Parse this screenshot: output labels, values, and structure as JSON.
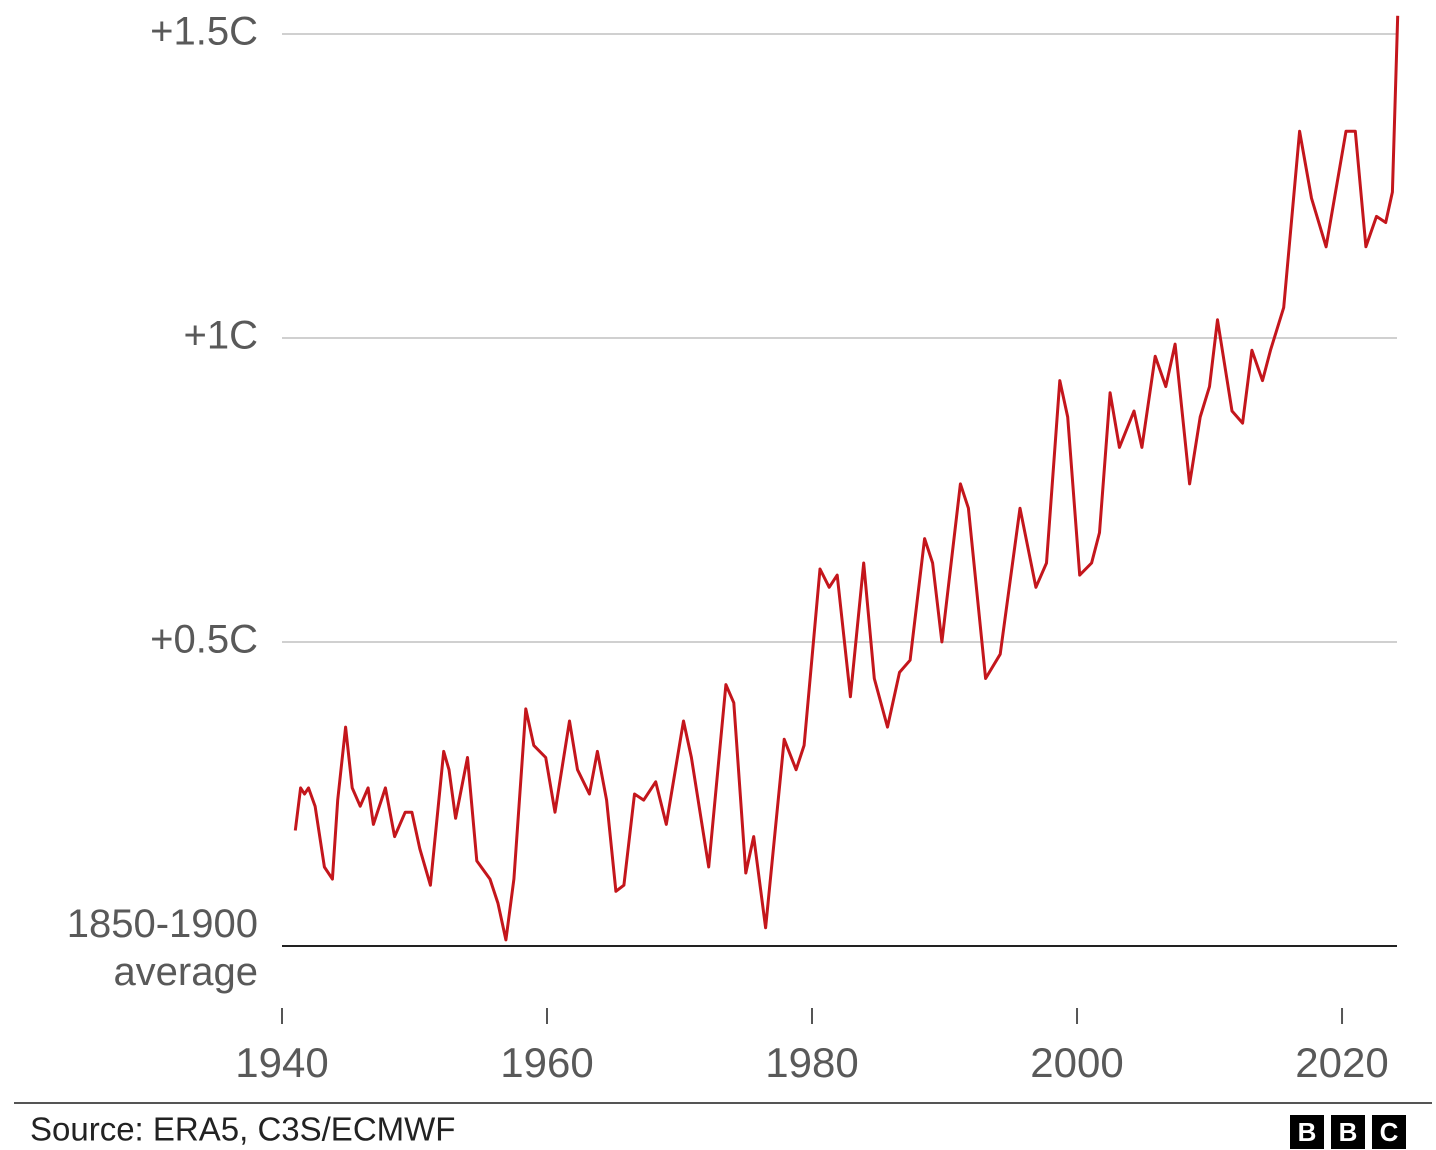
{
  "chart_data": {
    "type": "line",
    "color": "#c4161c",
    "xlim": [
      1940,
      2024.3
    ],
    "xticks": [
      1940,
      1960,
      1980,
      2000,
      2020
    ],
    "ylim": [
      0,
      1.55
    ],
    "yticks": [
      {
        "value": 0,
        "label": "1850-1900 average"
      },
      {
        "value": 0.5,
        "label": "+0.5C"
      },
      {
        "value": 1,
        "label": "+1C"
      },
      {
        "value": 1.5,
        "label": "+1.5C"
      }
    ],
    "grid": true,
    "x": [
      1941.0,
      1941.4,
      1941.7,
      1942.0,
      1942.5,
      1943.2,
      1943.8,
      1944.2,
      1944.8,
      1945.3,
      1945.9,
      1946.5,
      1946.9,
      1947.8,
      1948.5,
      1949.3,
      1949.8,
      1950.4,
      1951.2,
      1952.2,
      1952.6,
      1953.1,
      1954.0,
      1954.7,
      1955.7,
      1956.3,
      1956.9,
      1957.5,
      1958.4,
      1959.0,
      1959.9,
      1960.6,
      1961.7,
      1962.3,
      1963.2,
      1963.8,
      1964.5,
      1965.2,
      1965.8,
      1966.6,
      1967.3,
      1968.2,
      1969.0,
      1970.3,
      1970.9,
      1972.2,
      1973.5,
      1974.1,
      1975.0,
      1975.6,
      1976.5,
      1977.9,
      1978.8,
      1979.4,
      1980.6,
      1981.3,
      1981.9,
      1982.9,
      1983.9,
      1984.7,
      1985.7,
      1986.6,
      1987.4,
      1988.5,
      1989.1,
      1989.8,
      1991.2,
      1991.8,
      1993.1,
      1994.2,
      1995.7,
      1996.9,
      1997.7,
      1998.7,
      1999.3,
      2000.2,
      2001.1,
      2001.7,
      2002.5,
      2003.2,
      2004.3,
      2004.9,
      2005.9,
      2006.7,
      2007.4,
      2008.5,
      2009.3,
      2010.0,
      2010.6,
      2011.7,
      2012.5,
      2013.2,
      2014.0,
      2014.6,
      2015.6,
      2016.8,
      2017.7,
      2018.8,
      2020.3,
      2021.0,
      2021.8,
      2022.6,
      2023.3,
      2023.8,
      2024.2
    ],
    "values": [
      0.19,
      0.26,
      0.25,
      0.26,
      0.23,
      0.13,
      0.11,
      0.24,
      0.36,
      0.26,
      0.23,
      0.26,
      0.2,
      0.26,
      0.18,
      0.22,
      0.22,
      0.16,
      0.1,
      0.32,
      0.29,
      0.21,
      0.31,
      0.14,
      0.11,
      0.07,
      0.01,
      0.11,
      0.39,
      0.33,
      0.31,
      0.22,
      0.37,
      0.29,
      0.25,
      0.32,
      0.24,
      0.09,
      0.1,
      0.25,
      0.24,
      0.27,
      0.2,
      0.37,
      0.31,
      0.13,
      0.43,
      0.4,
      0.12,
      0.18,
      0.03,
      0.34,
      0.29,
      0.33,
      0.62,
      0.59,
      0.61,
      0.41,
      0.63,
      0.44,
      0.36,
      0.45,
      0.47,
      0.67,
      0.63,
      0.5,
      0.76,
      0.72,
      0.44,
      0.48,
      0.72,
      0.59,
      0.63,
      0.93,
      0.87,
      0.61,
      0.63,
      0.68,
      0.91,
      0.82,
      0.88,
      0.82,
      0.97,
      0.92,
      0.99,
      0.76,
      0.87,
      0.92,
      1.03,
      0.88,
      0.86,
      0.98,
      0.93,
      0.98,
      1.05,
      1.34,
      1.23,
      1.15,
      1.34,
      1.34,
      1.15,
      1.2,
      1.19,
      1.24,
      1.53
    ]
  },
  "footer": {
    "source": "Source: ERA5, C3S/ECMWF",
    "logo": [
      "B",
      "B",
      "C"
    ]
  }
}
